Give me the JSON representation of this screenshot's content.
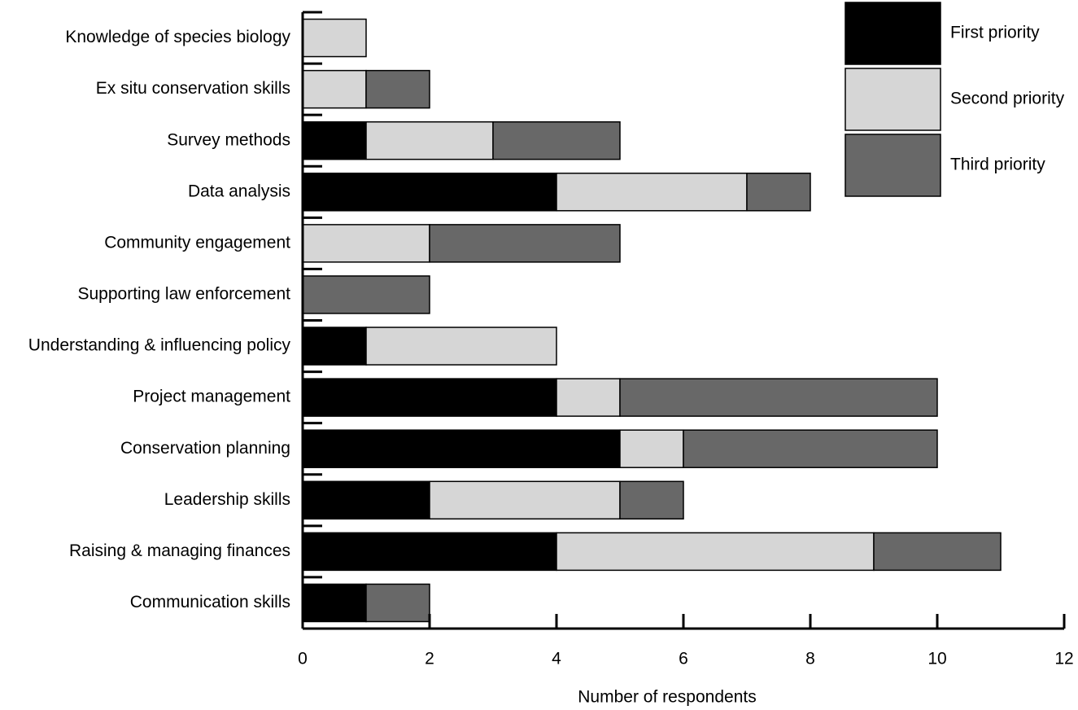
{
  "chart_data": {
    "type": "stacked-barh",
    "xlabel": "Number of respondents",
    "categories": [
      "Knowledge of species biology",
      "Ex situ conservation skills",
      "Survey methods",
      "Data analysis",
      "Community engagement",
      "Supporting law enforcement",
      "Understanding & influencing policy",
      "Project management",
      "Conservation planning",
      "Leadership skills",
      "Raising & managing finances",
      "Communication skills"
    ],
    "series": [
      {
        "name": "First priority",
        "color": "#000000",
        "values": [
          0,
          0,
          1,
          4,
          0,
          0,
          1,
          4,
          5,
          2,
          4,
          1
        ]
      },
      {
        "name": "Second priority",
        "color": "#d6d6d6",
        "values": [
          1,
          1,
          2,
          3,
          2,
          0,
          3,
          1,
          1,
          3,
          5,
          0
        ]
      },
      {
        "name": "Third priority",
        "color": "#686868",
        "values": [
          0,
          1,
          2,
          1,
          3,
          2,
          0,
          5,
          4,
          1,
          2,
          1
        ]
      }
    ],
    "xlim": [
      0,
      12
    ],
    "xticks": [
      0,
      2,
      4,
      6,
      8,
      10,
      12
    ]
  }
}
